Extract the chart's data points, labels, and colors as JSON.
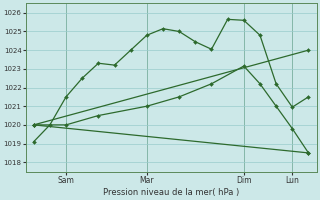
{
  "background_color": "#cce8e8",
  "grid_color": "#99cccc",
  "line_color": "#2d6a2d",
  "xlabel": "Pression niveau de la mer( hPa )",
  "ylim": [
    1017.5,
    1026.5
  ],
  "yticks": [
    1018,
    1019,
    1020,
    1021,
    1022,
    1023,
    1024,
    1025,
    1026
  ],
  "xlim": [
    -0.5,
    17.5
  ],
  "vline_positions": [
    2,
    7,
    13,
    16
  ],
  "xtick_positions": [
    2,
    7,
    13,
    16
  ],
  "xtick_labels": [
    "Sam",
    "Mar",
    "Dim",
    "Lun"
  ],
  "series1_x": [
    0,
    1,
    2,
    3,
    4,
    5,
    6,
    7,
    8,
    9,
    10,
    11,
    12,
    13,
    14,
    15,
    16,
    17
  ],
  "series1_y": [
    1019.1,
    1020.0,
    1021.5,
    1022.5,
    1023.3,
    1023.2,
    1024.0,
    1024.8,
    1025.15,
    1025.0,
    1024.45,
    1024.05,
    1025.65,
    1025.6,
    1024.8,
    1022.2,
    1020.95,
    1021.5
  ],
  "series2_x": [
    0,
    2,
    4,
    7,
    9,
    11,
    13,
    14,
    15,
    16,
    17
  ],
  "series2_y": [
    1020.0,
    1020.0,
    1020.5,
    1021.0,
    1021.5,
    1022.2,
    1023.15,
    1022.2,
    1021.0,
    1019.8,
    1018.5
  ],
  "series3_x": [
    0,
    17
  ],
  "series3_y": [
    1020.0,
    1018.5
  ],
  "series4_x": [
    0,
    17
  ],
  "series4_y": [
    1020.0,
    1024.0
  ],
  "figsize": [
    3.2,
    2.0
  ],
  "dpi": 100
}
